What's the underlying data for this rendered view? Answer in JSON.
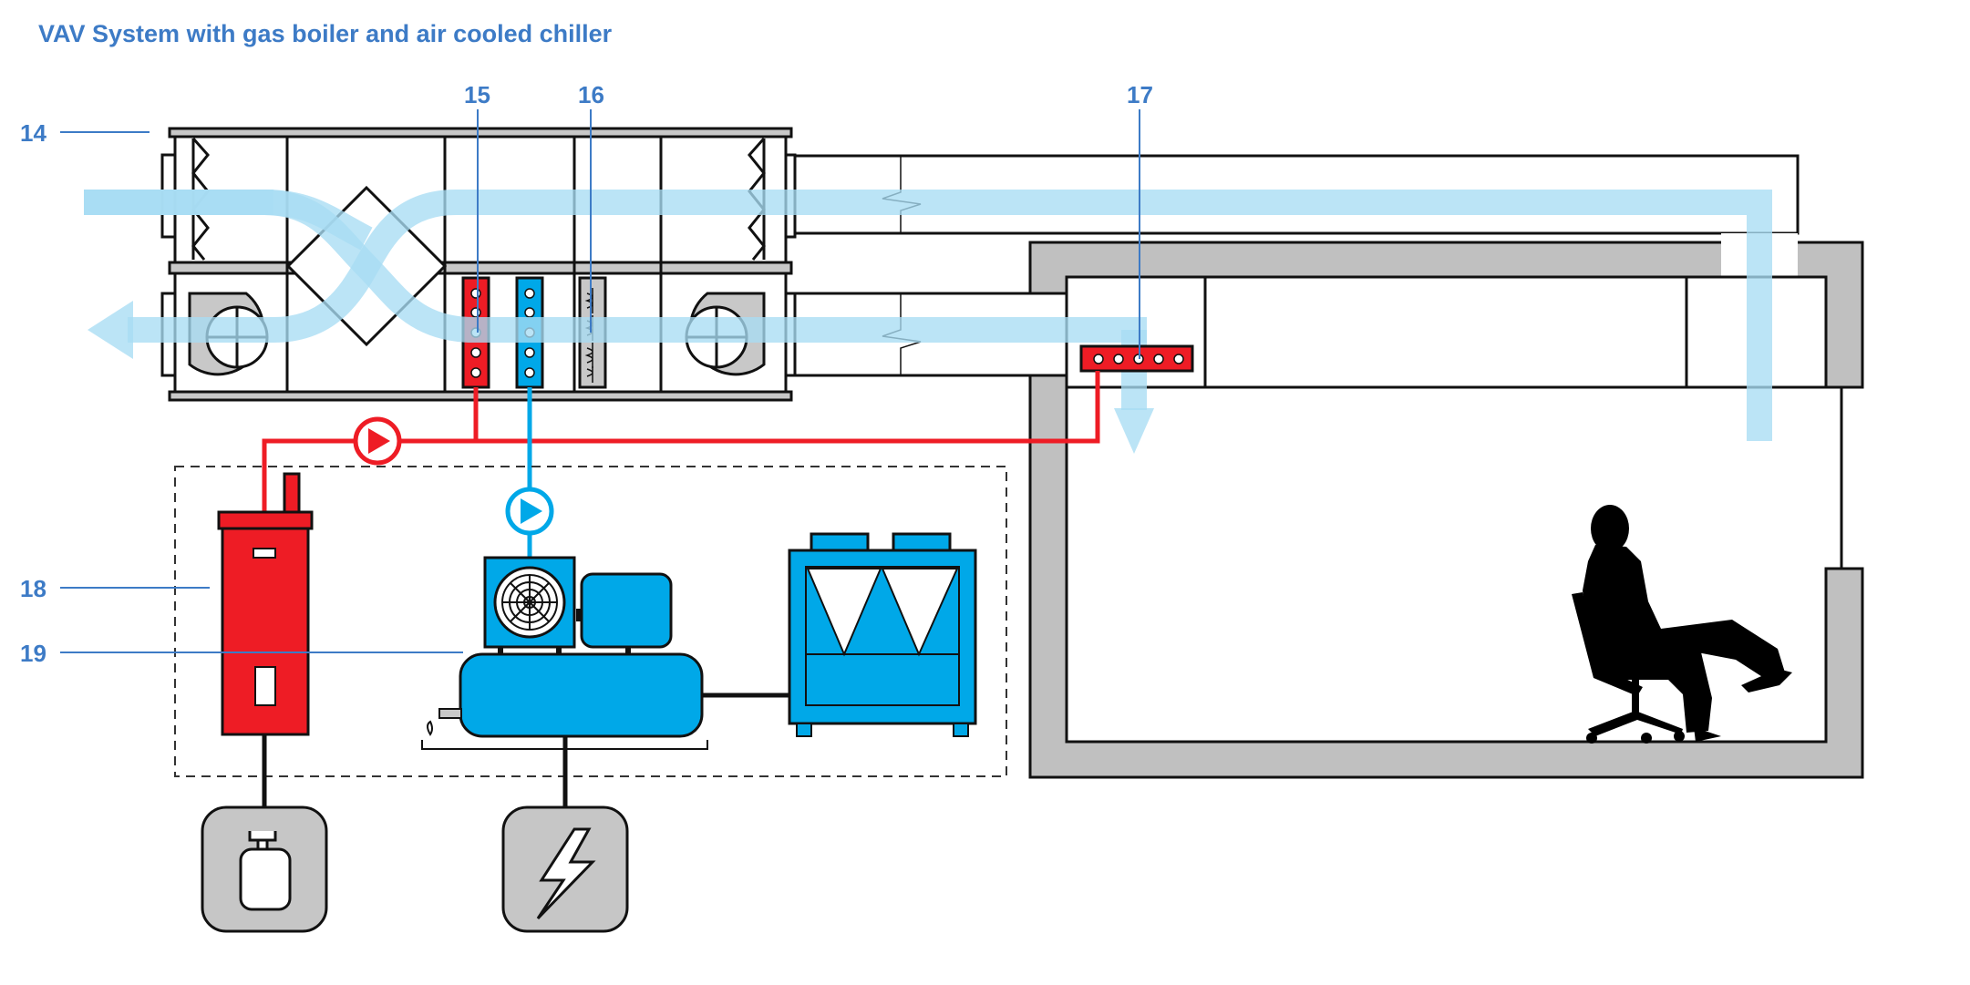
{
  "title": "VAV System with gas boiler and air cooled chiller",
  "labels": {
    "l14": "14",
    "l15": "15",
    "l16": "16",
    "l17": "17",
    "l18": "18",
    "l19": "19"
  },
  "colors": {
    "label_blue": "#3d7bc6",
    "airflow": "#b9e4f6",
    "hot_water": "#ee1c25",
    "chilled_water": "#00a8e8",
    "building_grey": "#c0c0c0",
    "utility_grey": "#c6c6c6"
  },
  "icons": {
    "gas": "gas-cylinder-icon",
    "power": "lightning-bolt-icon",
    "occupant": "seated-person-icon"
  }
}
